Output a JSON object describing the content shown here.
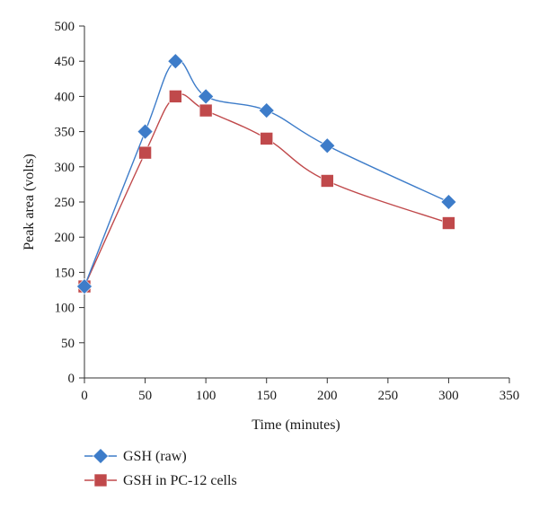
{
  "chart_data": {
    "type": "line",
    "title": "",
    "xlabel": "Time (minutes)",
    "ylabel": "Peak area (volts)",
    "xlim": [
      0,
      350
    ],
    "ylim": [
      0,
      500
    ],
    "xticks": [
      0,
      50,
      100,
      150,
      200,
      250,
      300,
      350
    ],
    "yticks": [
      0,
      50,
      100,
      150,
      200,
      250,
      300,
      350,
      400,
      450,
      500
    ],
    "grid": false,
    "legend_position": "bottom-left",
    "series": [
      {
        "name": "GSH (raw)",
        "color": "#3d7cc9",
        "marker": "diamond",
        "x": [
          0,
          50,
          75,
          100,
          150,
          200,
          300
        ],
        "y": [
          130,
          350,
          450,
          400,
          380,
          330,
          250
        ]
      },
      {
        "name": "GSH in PC-12 cells",
        "color": "#c0494b",
        "marker": "square",
        "x": [
          0,
          50,
          75,
          100,
          150,
          200,
          300
        ],
        "y": [
          130,
          320,
          400,
          380,
          340,
          280,
          220
        ]
      }
    ]
  }
}
